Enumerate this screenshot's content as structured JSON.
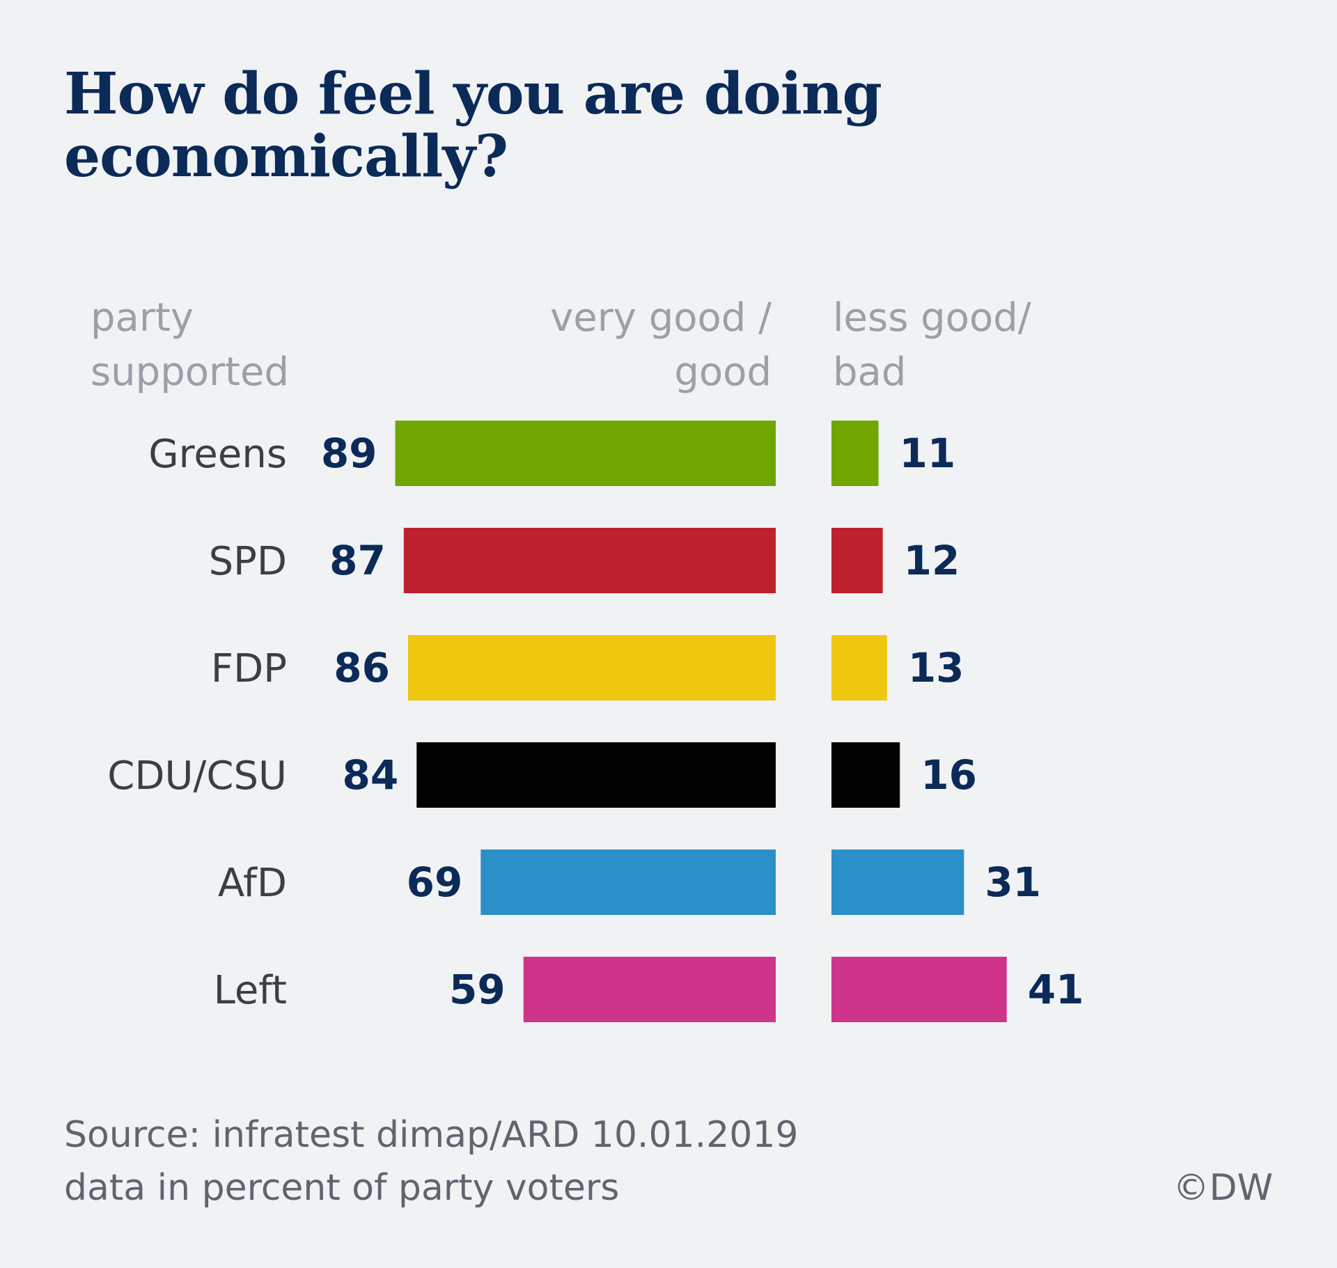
{
  "title": "How do feel you are doing economically?",
  "headers": {
    "party": "party\nsupported",
    "good": "very good /\ngood",
    "bad": "less good/\nbad"
  },
  "footer": {
    "source": "Source: infratest dimap/ARD 10.01.2019",
    "note": "data in percent of party voters",
    "credit": "©DW"
  },
  "chart_data": {
    "type": "bar",
    "title": "How do feel you are doing economically?",
    "categories": [
      "Greens",
      "SPD",
      "FDP",
      "CDU/CSU",
      "AfD",
      "Left"
    ],
    "series": [
      {
        "name": "very good / good",
        "values": [
          89,
          87,
          86,
          84,
          69,
          59
        ]
      },
      {
        "name": "less good/ bad",
        "values": [
          11,
          12,
          13,
          16,
          31,
          41
        ]
      }
    ],
    "colors": [
      "#71a500",
      "#be202e",
      "#f0c70f",
      "#000000",
      "#2b8fc8",
      "#cf348b"
    ],
    "xlabel": "",
    "ylabel": "",
    "unit": "percent",
    "grid": false
  }
}
